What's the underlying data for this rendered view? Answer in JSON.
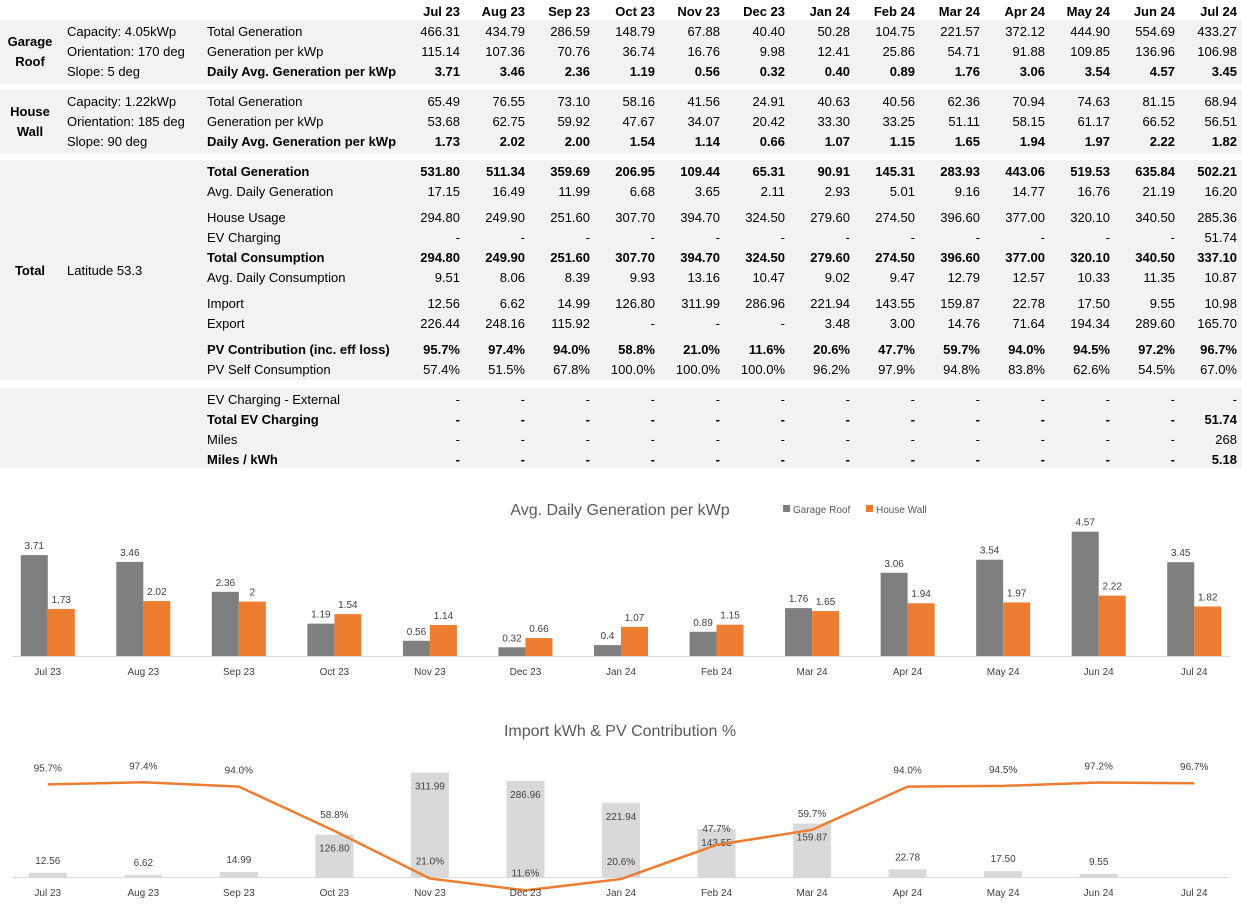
{
  "months": [
    "Jul 23",
    "Aug 23",
    "Sep 23",
    "Oct 23",
    "Nov 23",
    "Dec 23",
    "Jan 24",
    "Feb 24",
    "Mar 24",
    "Apr 24",
    "May 24",
    "Jun 24",
    "Jul 24"
  ],
  "sections": [
    {
      "name_lines": [
        "Garage",
        "Roof"
      ],
      "desc": [
        "Capacity: 4.05kWp",
        "Orientation: 170 deg",
        "Slope: 5 deg"
      ],
      "rows": [
        {
          "label": "Total Generation",
          "bold": false,
          "values": [
            "466.31",
            "434.79",
            "286.59",
            "148.79",
            "67.88",
            "40.40",
            "50.28",
            "104.75",
            "221.57",
            "372.12",
            "444.90",
            "554.69",
            "433.27"
          ]
        },
        {
          "label": "Generation per kWp",
          "bold": false,
          "values": [
            "115.14",
            "107.36",
            "70.76",
            "36.74",
            "16.76",
            "9.98",
            "12.41",
            "25.86",
            "54.71",
            "91.88",
            "109.85",
            "136.96",
            "106.98"
          ]
        },
        {
          "label": "Daily Avg. Generation per kWp",
          "bold": true,
          "values": [
            "3.71",
            "3.46",
            "2.36",
            "1.19",
            "0.56",
            "0.32",
            "0.40",
            "0.89",
            "1.76",
            "3.06",
            "3.54",
            "4.57",
            "3.45"
          ]
        }
      ]
    },
    {
      "name_lines": [
        "House",
        "Wall"
      ],
      "desc": [
        "Capacity: 1.22kWp",
        "Orientation: 185 deg",
        "Slope: 90 deg"
      ],
      "rows": [
        {
          "label": "Total Generation",
          "bold": false,
          "values": [
            "65.49",
            "76.55",
            "73.10",
            "58.16",
            "41.56",
            "24.91",
            "40.63",
            "40.56",
            "62.36",
            "70.94",
            "74.63",
            "81.15",
            "68.94"
          ]
        },
        {
          "label": "Generation per kWp",
          "bold": false,
          "values": [
            "53.68",
            "62.75",
            "59.92",
            "47.67",
            "34.07",
            "20.42",
            "33.30",
            "33.25",
            "51.11",
            "58.15",
            "61.17",
            "66.52",
            "56.51"
          ]
        },
        {
          "label": "Daily Avg. Generation per kWp",
          "bold": true,
          "values": [
            "1.73",
            "2.02",
            "2.00",
            "1.54",
            "1.14",
            "0.66",
            "1.07",
            "1.15",
            "1.65",
            "1.94",
            "1.97",
            "2.22",
            "1.82"
          ]
        }
      ]
    },
    {
      "name_lines": [
        "Total"
      ],
      "desc": [
        "Latitude 53.3"
      ],
      "rows": [
        {
          "label": "Total Generation",
          "bold": true,
          "values": [
            "531.80",
            "511.34",
            "359.69",
            "206.95",
            "109.44",
            "65.31",
            "90.91",
            "145.31",
            "283.93",
            "443.06",
            "519.53",
            "635.84",
            "502.21"
          ]
        },
        {
          "label": "Avg. Daily Generation",
          "bold": false,
          "values": [
            "17.15",
            "16.49",
            "11.99",
            "6.68",
            "3.65",
            "2.11",
            "2.93",
            "5.01",
            "9.16",
            "14.77",
            "16.76",
            "21.19",
            "16.20"
          ]
        },
        {
          "label": "House Usage",
          "bold": false,
          "values": [
            "294.80",
            "249.90",
            "251.60",
            "307.70",
            "394.70",
            "324.50",
            "279.60",
            "274.50",
            "396.60",
            "377.00",
            "320.10",
            "340.50",
            "285.36"
          ]
        },
        {
          "label": "EV Charging",
          "bold": false,
          "values": [
            "-",
            "-",
            "-",
            "-",
            "-",
            "-",
            "-",
            "-",
            "-",
            "-",
            "-",
            "-",
            "51.74"
          ]
        },
        {
          "label": "Total Consumption",
          "bold": true,
          "values": [
            "294.80",
            "249.90",
            "251.60",
            "307.70",
            "394.70",
            "324.50",
            "279.60",
            "274.50",
            "396.60",
            "377.00",
            "320.10",
            "340.50",
            "337.10"
          ]
        },
        {
          "label": "Avg. Daily Consumption",
          "bold": false,
          "values": [
            "9.51",
            "8.06",
            "8.39",
            "9.93",
            "13.16",
            "10.47",
            "9.02",
            "9.47",
            "12.79",
            "12.57",
            "10.33",
            "11.35",
            "10.87"
          ]
        },
        {
          "label": "Import",
          "bold": false,
          "values": [
            "12.56",
            "6.62",
            "14.99",
            "126.80",
            "311.99",
            "286.96",
            "221.94",
            "143.55",
            "159.87",
            "22.78",
            "17.50",
            "9.55",
            "10.98"
          ]
        },
        {
          "label": "Export",
          "bold": false,
          "values": [
            "226.44",
            "248.16",
            "115.92",
            "-",
            "-",
            "-",
            "3.48",
            "3.00",
            "14.76",
            "71.64",
            "194.34",
            "289.60",
            "165.70"
          ]
        },
        {
          "label": "PV Contribution (inc. eff loss)",
          "bold": true,
          "values": [
            "95.7%",
            "97.4%",
            "94.0%",
            "58.8%",
            "21.0%",
            "11.6%",
            "20.6%",
            "47.7%",
            "59.7%",
            "94.0%",
            "94.5%",
            "97.2%",
            "96.7%"
          ]
        },
        {
          "label": "PV Self Consumption",
          "bold": false,
          "values": [
            "57.4%",
            "51.5%",
            "67.8%",
            "100.0%",
            "100.0%",
            "100.0%",
            "96.2%",
            "97.9%",
            "94.8%",
            "83.8%",
            "62.6%",
            "54.5%",
            "67.0%"
          ]
        }
      ]
    },
    {
      "name_lines": [],
      "desc": [],
      "rows": [
        {
          "label": "EV Charging - External",
          "bold": false,
          "values": [
            "-",
            "-",
            "-",
            "-",
            "-",
            "-",
            "-",
            "-",
            "-",
            "-",
            "-",
            "-",
            "-"
          ]
        },
        {
          "label": "Total EV Charging",
          "bold": true,
          "values": [
            "-",
            "-",
            "-",
            "-",
            "-",
            "-",
            "-",
            "-",
            "-",
            "-",
            "-",
            "-",
            "51.74"
          ]
        },
        {
          "label": "Miles",
          "bold": false,
          "values": [
            "-",
            "-",
            "-",
            "-",
            "-",
            "-",
            "-",
            "-",
            "-",
            "-",
            "-",
            "-",
            "268"
          ]
        },
        {
          "label": "Miles / kWh",
          "bold": true,
          "values": [
            "-",
            "-",
            "-",
            "-",
            "-",
            "-",
            "-",
            "-",
            "-",
            "-",
            "-",
            "-",
            "5.18"
          ]
        }
      ]
    }
  ],
  "chart_data": [
    {
      "type": "bar",
      "title": "Avg. Daily Generation per kWp",
      "categories": [
        "Jul 23",
        "Aug 23",
        "Sep 23",
        "Oct 23",
        "Nov 23",
        "Dec 23",
        "Jan 24",
        "Feb 24",
        "Mar 24",
        "Apr 24",
        "May 24",
        "Jun 24",
        "Jul 24"
      ],
      "series": [
        {
          "name": "Garage Roof",
          "color": "#7f7f7f",
          "values": [
            3.71,
            3.46,
            2.36,
            1.19,
            0.56,
            0.32,
            0.4,
            0.89,
            1.76,
            3.06,
            3.54,
            4.57,
            3.45
          ]
        },
        {
          "name": "House Wall",
          "color": "#ed7d31",
          "values": [
            1.73,
            2.02,
            2.0,
            1.54,
            1.14,
            0.66,
            1.07,
            1.15,
            1.65,
            1.94,
            1.97,
            2.22,
            1.82
          ]
        }
      ],
      "ylim": [
        0,
        5
      ],
      "legend": "top-right",
      "grid": false
    },
    {
      "type": "bar",
      "title": "Import kWh & PV Contribution %",
      "categories": [
        "Jul 23",
        "Aug 23",
        "Sep 23",
        "Oct 23",
        "Nov 23",
        "Dec 23",
        "Jan 24",
        "Feb 24",
        "Mar 24",
        "Apr 24",
        "May 24",
        "Jun 24",
        "Jul 24"
      ],
      "series": [
        {
          "type": "bar",
          "color": "#d9d9d9",
          "values": [
            12.56,
            6.62,
            14.99,
            126.8,
            311.99,
            286.96,
            221.94,
            143.55,
            159.87,
            22.78,
            17.5,
            9.55,
            null
          ],
          "labels": [
            "12.56",
            "6.62",
            "14.99",
            "126.80",
            "311.99",
            "286.96",
            "221.94",
            "143.55",
            "159.87",
            "22.78",
            "17.50",
            "9.55",
            ""
          ]
        },
        {
          "type": "line",
          "color": "#ed7d31",
          "values": [
            95.7,
            97.4,
            94.0,
            58.8,
            21.0,
            11.6,
            20.6,
            47.7,
            59.7,
            94.0,
            94.5,
            97.2,
            96.7
          ],
          "labels": [
            "95.7%",
            "97.4%",
            "94.0%",
            "58.8%",
            "21.0%",
            "11.6%",
            "20.6%",
            "47.7%",
            "59.7%",
            "94.0%",
            "94.5%",
            "97.2%",
            "96.7%"
          ]
        }
      ],
      "ylim_bar": [
        0,
        320
      ],
      "ylim_line": [
        0,
        100
      ],
      "grid": false
    }
  ]
}
